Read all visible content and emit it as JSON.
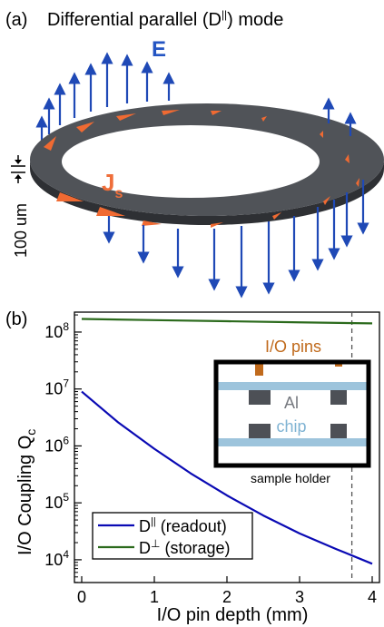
{
  "panel_a": {
    "label": "(a)",
    "title_main": "Differential parallel (D",
    "title_sup": "||",
    "title_end": ") mode",
    "e_label": "E",
    "js_main": "J",
    "js_sub": "s",
    "thickness_label": "100 um",
    "colors": {
      "ring": "#505358",
      "e_arrow": "#1f49b6",
      "js_arrow": "#f06a32",
      "e_text": "#2455c3",
      "js_text": "#ef6e3a"
    }
  },
  "panel_b": {
    "label": "(b)",
    "inset": {
      "pins_label": "I/O pins",
      "al_label": "Al",
      "chip_label": "chip",
      "holder_label": "sample holder",
      "colors": {
        "pins": "#c06a1c",
        "chip": "#9dc4dc",
        "al": "#4d5056",
        "frame": "#000000"
      }
    }
  },
  "chart_data": {
    "type": "line",
    "title": "",
    "xlabel": "I/O pin depth (mm)",
    "ylabel_main": "I/O Coupling Q",
    "ylabel_sub": "c",
    "xlim": [
      -0.1,
      4.1
    ],
    "ylim_log10": [
      3.6,
      8.35
    ],
    "y_scale": "log",
    "x_ticks": [
      0,
      1,
      2,
      3,
      4
    ],
    "y_ticks": [
      {
        "value": 10000,
        "base": "10",
        "exp": "4"
      },
      {
        "value": 100000,
        "base": "10",
        "exp": "5"
      },
      {
        "value": 1000000,
        "base": "10",
        "exp": "6"
      },
      {
        "value": 10000000,
        "base": "10",
        "exp": "7"
      },
      {
        "value": 100000000,
        "base": "10",
        "exp": "8"
      }
    ],
    "vline_x": 3.72,
    "legend_position": "bottom-left",
    "series": [
      {
        "name_main": "D",
        "name_sup": "||",
        "name_rest": " (readout)",
        "color": "#0a0ab4",
        "x": [
          0,
          0.5,
          1.0,
          1.5,
          2.0,
          2.5,
          3.0,
          3.5,
          4.0
        ],
        "y": [
          9000000,
          2600000,
          890000,
          330000,
          135000,
          60000,
          29000,
          15500,
          8500
        ]
      },
      {
        "name_main": "D",
        "name_sup": "⊥",
        "name_rest": " (storage)",
        "color": "#2b6a1c",
        "x": [
          0,
          1,
          2,
          3,
          4
        ],
        "y": [
          170000000,
          162000000,
          155000000,
          148000000,
          142000000
        ]
      }
    ]
  }
}
